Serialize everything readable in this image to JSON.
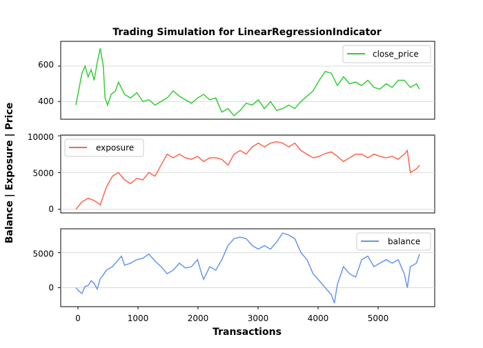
{
  "chart_data": {
    "type": "line",
    "title": "Trading Simulation for LinearRegressionIndicator",
    "xlabel": "Transactions",
    "ylabel": "Balance | Exposure | Price",
    "xlim": [
      -250,
      5900
    ],
    "xticks": [
      0,
      1000,
      2000,
      3000,
      4000,
      5000
    ],
    "grid": "horizontal",
    "panels": [
      {
        "series": {
          "name": "close_price",
          "color": "#32cd32",
          "points": [
            [
              0,
              380
            ],
            [
              50,
              470
            ],
            [
              100,
              560
            ],
            [
              150,
              600
            ],
            [
              200,
              540
            ],
            [
              250,
              580
            ],
            [
              300,
              520
            ],
            [
              350,
              620
            ],
            [
              400,
              700
            ],
            [
              450,
              600
            ],
            [
              480,
              420
            ],
            [
              520,
              380
            ],
            [
              580,
              440
            ],
            [
              650,
              460
            ],
            [
              700,
              510
            ],
            [
              800,
              440
            ],
            [
              900,
              420
            ],
            [
              1000,
              450
            ],
            [
              1100,
              400
            ],
            [
              1200,
              410
            ],
            [
              1300,
              380
            ],
            [
              1400,
              400
            ],
            [
              1500,
              420
            ],
            [
              1600,
              460
            ],
            [
              1700,
              430
            ],
            [
              1800,
              410
            ],
            [
              1900,
              390
            ],
            [
              2000,
              420
            ],
            [
              2100,
              440
            ],
            [
              2200,
              410
            ],
            [
              2300,
              420
            ],
            [
              2400,
              340
            ],
            [
              2500,
              360
            ],
            [
              2600,
              320
            ],
            [
              2700,
              350
            ],
            [
              2800,
              390
            ],
            [
              2900,
              380
            ],
            [
              3000,
              410
            ],
            [
              3100,
              360
            ],
            [
              3200,
              400
            ],
            [
              3300,
              350
            ],
            [
              3400,
              360
            ],
            [
              3500,
              380
            ],
            [
              3600,
              360
            ],
            [
              3700,
              400
            ],
            [
              3800,
              430
            ],
            [
              3900,
              460
            ],
            [
              4000,
              520
            ],
            [
              4100,
              570
            ],
            [
              4200,
              560
            ],
            [
              4300,
              490
            ],
            [
              4400,
              540
            ],
            [
              4500,
              500
            ],
            [
              4600,
              510
            ],
            [
              4700,
              490
            ],
            [
              4800,
              520
            ],
            [
              4900,
              480
            ],
            [
              5000,
              470
            ],
            [
              5100,
              500
            ],
            [
              5200,
              480
            ],
            [
              5300,
              520
            ],
            [
              5400,
              520
            ],
            [
              5500,
              480
            ],
            [
              5600,
              500
            ],
            [
              5650,
              470
            ]
          ]
        },
        "ylim": [
          300,
          740
        ],
        "yticks": [
          400,
          600
        ],
        "legend": "top-right"
      },
      {
        "series": {
          "name": "exposure",
          "color": "#ff6347",
          "points": [
            [
              0,
              0
            ],
            [
              100,
              1000
            ],
            [
              200,
              1500
            ],
            [
              300,
              1200
            ],
            [
              400,
              600
            ],
            [
              450,
              1800
            ],
            [
              500,
              3000
            ],
            [
              600,
              4500
            ],
            [
              700,
              5000
            ],
            [
              800,
              4000
            ],
            [
              900,
              3500
            ],
            [
              1000,
              4200
            ],
            [
              1100,
              4000
            ],
            [
              1200,
              5000
            ],
            [
              1300,
              4500
            ],
            [
              1400,
              6000
            ],
            [
              1500,
              7500
            ],
            [
              1600,
              7000
            ],
            [
              1700,
              7500
            ],
            [
              1800,
              7000
            ],
            [
              1900,
              6800
            ],
            [
              2000,
              7200
            ],
            [
              2100,
              6500
            ],
            [
              2200,
              7000
            ],
            [
              2300,
              7000
            ],
            [
              2400,
              6800
            ],
            [
              2500,
              6000
            ],
            [
              2600,
              7500
            ],
            [
              2700,
              8000
            ],
            [
              2800,
              7500
            ],
            [
              2900,
              8500
            ],
            [
              3000,
              9000
            ],
            [
              3100,
              8500
            ],
            [
              3200,
              9000
            ],
            [
              3300,
              9200
            ],
            [
              3400,
              9000
            ],
            [
              3500,
              8500
            ],
            [
              3600,
              9000
            ],
            [
              3700,
              8000
            ],
            [
              3800,
              7500
            ],
            [
              3900,
              7000
            ],
            [
              4000,
              7200
            ],
            [
              4100,
              7600
            ],
            [
              4200,
              7800
            ],
            [
              4300,
              7200
            ],
            [
              4400,
              6500
            ],
            [
              4500,
              7000
            ],
            [
              4600,
              7500
            ],
            [
              4700,
              7500
            ],
            [
              4800,
              7000
            ],
            [
              4900,
              7500
            ],
            [
              5000,
              7200
            ],
            [
              5100,
              7000
            ],
            [
              5200,
              7200
            ],
            [
              5300,
              6800
            ],
            [
              5400,
              7500
            ],
            [
              5450,
              8000
            ],
            [
              5500,
              5000
            ],
            [
              5600,
              5500
            ],
            [
              5650,
              6000
            ]
          ]
        },
        "ylim": [
          -500,
          10100
        ],
        "yticks": [
          0,
          5000,
          10000
        ],
        "legend": "top-left"
      },
      {
        "series": {
          "name": "balance",
          "color": "#6495ed",
          "points": [
            [
              0,
              0
            ],
            [
              50,
              -500
            ],
            [
              100,
              -800
            ],
            [
              150,
              200
            ],
            [
              200,
              300
            ],
            [
              250,
              1000
            ],
            [
              300,
              600
            ],
            [
              350,
              -200
            ],
            [
              400,
              1300
            ],
            [
              450,
              1800
            ],
            [
              500,
              2500
            ],
            [
              600,
              3000
            ],
            [
              700,
              4000
            ],
            [
              750,
              4500
            ],
            [
              800,
              3200
            ],
            [
              900,
              3500
            ],
            [
              1000,
              4000
            ],
            [
              1100,
              4200
            ],
            [
              1200,
              4800
            ],
            [
              1300,
              3800
            ],
            [
              1400,
              3000
            ],
            [
              1500,
              2000
            ],
            [
              1600,
              2500
            ],
            [
              1700,
              3500
            ],
            [
              1800,
              2800
            ],
            [
              1900,
              3000
            ],
            [
              2000,
              4000
            ],
            [
              2050,
              2500
            ],
            [
              2100,
              1200
            ],
            [
              2200,
              3000
            ],
            [
              2300,
              2500
            ],
            [
              2400,
              4000
            ],
            [
              2500,
              6000
            ],
            [
              2600,
              7000
            ],
            [
              2700,
              7200
            ],
            [
              2800,
              7000
            ],
            [
              2900,
              6000
            ],
            [
              3000,
              5500
            ],
            [
              3100,
              6000
            ],
            [
              3200,
              5500
            ],
            [
              3300,
              6500
            ],
            [
              3400,
              7800
            ],
            [
              3500,
              7500
            ],
            [
              3600,
              7000
            ],
            [
              3700,
              5000
            ],
            [
              3800,
              4000
            ],
            [
              3900,
              2000
            ],
            [
              4000,
              1000
            ],
            [
              4100,
              0
            ],
            [
              4200,
              -1000
            ],
            [
              4250,
              -2200
            ],
            [
              4300,
              500
            ],
            [
              4400,
              3000
            ],
            [
              4500,
              2000
            ],
            [
              4600,
              1500
            ],
            [
              4700,
              4000
            ],
            [
              4800,
              4500
            ],
            [
              4900,
              3000
            ],
            [
              5000,
              3500
            ],
            [
              5100,
              4000
            ],
            [
              5200,
              3500
            ],
            [
              5300,
              4000
            ],
            [
              5400,
              2000
            ],
            [
              5450,
              0
            ],
            [
              5500,
              3000
            ],
            [
              5600,
              3500
            ],
            [
              5650,
              4800
            ]
          ]
        },
        "ylim": [
          -2700,
          8400
        ],
        "yticks": [
          0,
          5000
        ],
        "legend": "top-right"
      }
    ]
  }
}
